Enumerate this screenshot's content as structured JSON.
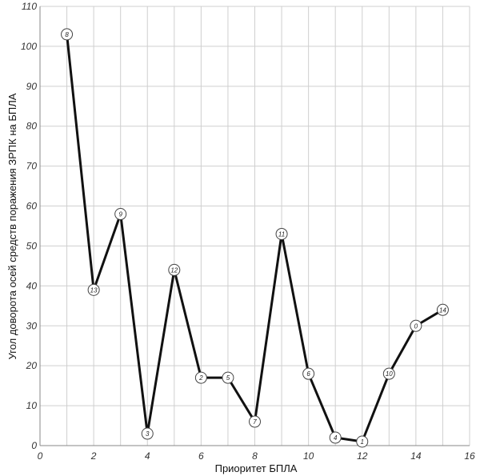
{
  "chart_data": {
    "type": "line",
    "xlabel": "Приоритет БПЛА",
    "ylabel": "Угол доворота осей средств поражения ЗРПК на БПЛА",
    "xlim": [
      0,
      16
    ],
    "ylim": [
      0,
      110
    ],
    "x_ticks": [
      0,
      2,
      4,
      6,
      8,
      10,
      12,
      14,
      16
    ],
    "y_ticks": [
      0,
      10,
      20,
      30,
      40,
      50,
      60,
      70,
      80,
      90,
      100,
      110
    ],
    "grid": true,
    "series": [
      {
        "x": [
          1,
          2,
          3,
          4,
          5,
          6,
          7,
          8,
          9,
          10,
          11,
          12,
          13,
          14,
          15
        ],
        "values": [
          103,
          39,
          58,
          3,
          44,
          17,
          17,
          6,
          53,
          18,
          2,
          1,
          18,
          30,
          34
        ],
        "point_labels": [
          "8",
          "13",
          "9",
          "3",
          "12",
          "2",
          "5",
          "7",
          "11",
          "6",
          "4",
          "1",
          "10",
          "0",
          "14"
        ]
      }
    ],
    "colors": {
      "line": "#111111",
      "grid": "#cfcfcf",
      "marker_fill": "#ffffff"
    }
  }
}
